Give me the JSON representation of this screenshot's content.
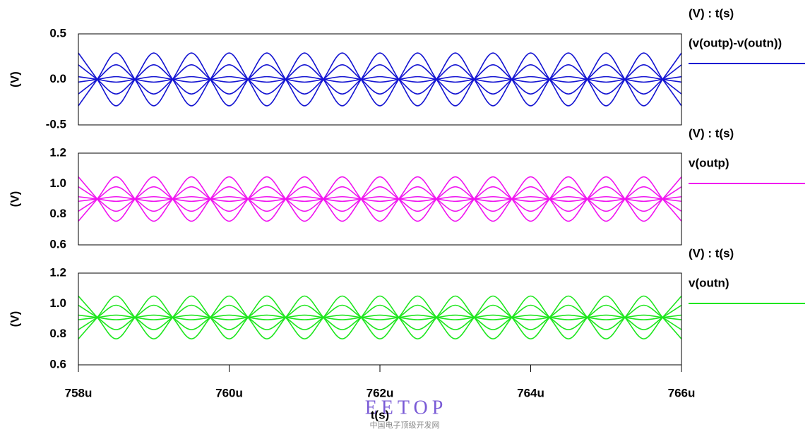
{
  "chart_data": [
    {
      "type": "line",
      "ylabel": "(V)",
      "legend_title": "(V) : t(s)",
      "xlim": [
        0.000758,
        0.000766
      ],
      "ylim": [
        -0.5,
        0.5
      ],
      "yticks": [
        0.5,
        {
          "value": 0,
          "label": "0.0"
        },
        -0.5
      ],
      "x": [
        0.000758,
        0.00075825,
        0.0007585,
        0.00075875,
        0.000759,
        0.00075925,
        0.0007595,
        0.00075975,
        0.00076,
        0.00076025,
        0.0007605,
        0.00076075,
        0.000761,
        0.00076125,
        0.0007615,
        0.00076175,
        0.000762,
        0.00076225,
        0.0007625,
        0.00076275,
        0.000763,
        0.00076325,
        0.0007635,
        0.00076375,
        0.000764,
        0.00076425,
        0.0007645,
        0.00076475,
        0.000765,
        0.00076525,
        0.0007655,
        0.00076575,
        0.000766
      ],
      "series": [
        {
          "name": "(v(outp)-v(outn))",
          "color": "#1414d2",
          "traces": [
            [
              0.29,
              0,
              -0.29,
              0,
              0.29,
              0,
              -0.29,
              0,
              0.29,
              0,
              -0.29,
              0,
              0.29,
              0,
              -0.29,
              0,
              0.29,
              0,
              -0.29,
              0,
              0.29,
              0,
              -0.29,
              0,
              0.29,
              0,
              -0.29,
              0,
              0.29,
              0,
              -0.29,
              0,
              0.29
            ],
            [
              -0.29,
              0,
              0.29,
              0,
              -0.29,
              0,
              0.29,
              0,
              -0.29,
              0,
              0.29,
              0,
              -0.29,
              0,
              0.29,
              0,
              -0.29,
              0,
              0.29,
              0,
              -0.29,
              0,
              0.29,
              0,
              -0.29,
              0,
              0.29,
              0,
              -0.29,
              0,
              0.29,
              0,
              -0.29
            ],
            [
              0.16,
              0,
              -0.16,
              0,
              0.16,
              0,
              -0.16,
              0,
              0.16,
              0,
              -0.16,
              0,
              0.16,
              0,
              -0.16,
              0,
              0.16,
              0,
              -0.16,
              0,
              0.16,
              0,
              -0.16,
              0,
              0.16,
              0,
              -0.16,
              0,
              0.16,
              0,
              -0.16,
              0,
              0.16
            ],
            [
              -0.16,
              0,
              0.16,
              0,
              -0.16,
              0,
              0.16,
              0,
              -0.16,
              0,
              0.16,
              0,
              -0.16,
              0,
              0.16,
              0,
              -0.16,
              0,
              0.16,
              0,
              -0.16,
              0,
              0.16,
              0,
              -0.16,
              0,
              0.16,
              0,
              -0.16,
              0,
              0.16,
              0,
              -0.16
            ],
            [
              0.03,
              0,
              -0.03,
              0,
              0.03,
              0,
              -0.03,
              0,
              0.03,
              0,
              -0.03,
              0,
              0.03,
              0,
              -0.03,
              0,
              0.03,
              0,
              -0.03,
              0,
              0.03,
              0,
              -0.03,
              0,
              0.03,
              0,
              -0.03,
              0,
              0.03,
              0,
              -0.03,
              0,
              0.03
            ],
            [
              -0.03,
              0,
              0.03,
              0,
              -0.03,
              0,
              0.03,
              0,
              -0.03,
              0,
              0.03,
              0,
              -0.03,
              0,
              0.03,
              0,
              -0.03,
              0,
              0.03,
              0,
              -0.03,
              0,
              0.03,
              0,
              -0.03,
              0,
              0.03,
              0,
              -0.03,
              0,
              0.03,
              0,
              -0.03
            ]
          ]
        }
      ]
    },
    {
      "type": "line",
      "ylabel": "(V)",
      "legend_title": "(V) : t(s)",
      "xlim": [
        0.000758,
        0.000766
      ],
      "ylim": [
        0.6,
        1.2
      ],
      "yticks": [
        1.2,
        {
          "value": 1,
          "label": "1.0"
        },
        0.8,
        0.6
      ],
      "x": [
        0.000758,
        0.00075825,
        0.0007585,
        0.00075875,
        0.000759,
        0.00075925,
        0.0007595,
        0.00075975,
        0.00076,
        0.00076025,
        0.0007605,
        0.00076075,
        0.000761,
        0.00076125,
        0.0007615,
        0.00076175,
        0.000762,
        0.00076225,
        0.0007625,
        0.00076275,
        0.000763,
        0.00076325,
        0.0007635,
        0.00076375,
        0.000764,
        0.00076425,
        0.0007645,
        0.00076475,
        0.000765,
        0.00076525,
        0.0007655,
        0.00076575,
        0.000766
      ],
      "series": [
        {
          "name": "v(outp)",
          "color": "#f014f0",
          "traces": [
            [
              1.045,
              0.9,
              0.755,
              0.9,
              1.045,
              0.9,
              0.755,
              0.9,
              1.045,
              0.9,
              0.755,
              0.9,
              1.045,
              0.9,
              0.755,
              0.9,
              1.045,
              0.9,
              0.755,
              0.9,
              1.045,
              0.9,
              0.755,
              0.9,
              1.045,
              0.9,
              0.755,
              0.9,
              1.045,
              0.9,
              0.755,
              0.9,
              1.045
            ],
            [
              0.755,
              0.9,
              1.045,
              0.9,
              0.755,
              0.9,
              1.045,
              0.9,
              0.755,
              0.9,
              1.045,
              0.9,
              0.755,
              0.9,
              1.045,
              0.9,
              0.755,
              0.9,
              1.045,
              0.9,
              0.755,
              0.9,
              1.045,
              0.9,
              0.755,
              0.9,
              1.045,
              0.9,
              0.755,
              0.9,
              1.045,
              0.9,
              0.755
            ],
            [
              0.98,
              0.9,
              0.82,
              0.9,
              0.98,
              0.9,
              0.82,
              0.9,
              0.98,
              0.9,
              0.82,
              0.9,
              0.98,
              0.9,
              0.82,
              0.9,
              0.98,
              0.9,
              0.82,
              0.9,
              0.98,
              0.9,
              0.82,
              0.9,
              0.98,
              0.9,
              0.82,
              0.9,
              0.98,
              0.9,
              0.82,
              0.9,
              0.98
            ],
            [
              0.82,
              0.9,
              0.98,
              0.9,
              0.82,
              0.9,
              0.98,
              0.9,
              0.82,
              0.9,
              0.98,
              0.9,
              0.82,
              0.9,
              0.98,
              0.9,
              0.82,
              0.9,
              0.98,
              0.9,
              0.82,
              0.9,
              0.98,
              0.9,
              0.82,
              0.9,
              0.98,
              0.9,
              0.82,
              0.9,
              0.98,
              0.9,
              0.82
            ],
            [
              0.915,
              0.9,
              0.885,
              0.9,
              0.915,
              0.9,
              0.885,
              0.9,
              0.915,
              0.9,
              0.885,
              0.9,
              0.915,
              0.9,
              0.885,
              0.9,
              0.915,
              0.9,
              0.885,
              0.9,
              0.915,
              0.9,
              0.885,
              0.9,
              0.915,
              0.9,
              0.885,
              0.9,
              0.915,
              0.9,
              0.885,
              0.9,
              0.915
            ],
            [
              0.885,
              0.9,
              0.915,
              0.9,
              0.885,
              0.9,
              0.915,
              0.9,
              0.885,
              0.9,
              0.915,
              0.9,
              0.885,
              0.9,
              0.915,
              0.9,
              0.885,
              0.9,
              0.915,
              0.9,
              0.885,
              0.9,
              0.915,
              0.9,
              0.885,
              0.9,
              0.915,
              0.9,
              0.885,
              0.9,
              0.915,
              0.9,
              0.885
            ]
          ]
        }
      ]
    },
    {
      "type": "line",
      "ylabel": "(V)",
      "legend_title": "(V) : t(s)",
      "xlabel": "t(s)",
      "xlim": [
        0.000758,
        0.000766
      ],
      "ylim": [
        0.6,
        1.2
      ],
      "yticks": [
        1.2,
        {
          "value": 1,
          "label": "1.0"
        },
        0.8,
        0.6
      ],
      "xticks": [
        {
          "value": 0.000758,
          "label": "758u"
        },
        {
          "value": 0.00076,
          "label": "760u"
        },
        {
          "value": 0.000762,
          "label": "762u"
        },
        {
          "value": 0.000764,
          "label": "764u"
        },
        {
          "value": 0.000766,
          "label": "766u"
        }
      ],
      "x": [
        0.000758,
        0.00075825,
        0.0007585,
        0.00075875,
        0.000759,
        0.00075925,
        0.0007595,
        0.00075975,
        0.00076,
        0.00076025,
        0.0007605,
        0.00076075,
        0.000761,
        0.00076125,
        0.0007615,
        0.00076175,
        0.000762,
        0.00076225,
        0.0007625,
        0.00076275,
        0.000763,
        0.00076325,
        0.0007635,
        0.00076375,
        0.000764,
        0.00076425,
        0.0007645,
        0.00076475,
        0.000765,
        0.00076525,
        0.0007655,
        0.00076575,
        0.000766
      ],
      "series": [
        {
          "name": "v(outn)",
          "color": "#1ee61e",
          "traces": [
            [
              1.05,
              0.91,
              0.77,
              0.91,
              1.05,
              0.91,
              0.77,
              0.91,
              1.05,
              0.91,
              0.77,
              0.91,
              1.05,
              0.91,
              0.77,
              0.91,
              1.05,
              0.91,
              0.77,
              0.91,
              1.05,
              0.91,
              0.77,
              0.91,
              1.05,
              0.91,
              0.77,
              0.91,
              1.05,
              0.91,
              0.77,
              0.91,
              1.05
            ],
            [
              0.77,
              0.91,
              1.05,
              0.91,
              0.77,
              0.91,
              1.05,
              0.91,
              0.77,
              0.91,
              1.05,
              0.91,
              0.77,
              0.91,
              1.05,
              0.91,
              0.77,
              0.91,
              1.05,
              0.91,
              0.77,
              0.91,
              1.05,
              0.91,
              0.77,
              0.91,
              1.05,
              0.91,
              0.77,
              0.91,
              1.05,
              0.91,
              0.77
            ],
            [
              0.99,
              0.91,
              0.83,
              0.91,
              0.99,
              0.91,
              0.83,
              0.91,
              0.99,
              0.91,
              0.83,
              0.91,
              0.99,
              0.91,
              0.83,
              0.91,
              0.99,
              0.91,
              0.83,
              0.91,
              0.99,
              0.91,
              0.83,
              0.91,
              0.99,
              0.91,
              0.83,
              0.91,
              0.99,
              0.91,
              0.83,
              0.91,
              0.99
            ],
            [
              0.83,
              0.91,
              0.99,
              0.91,
              0.83,
              0.91,
              0.99,
              0.91,
              0.83,
              0.91,
              0.99,
              0.91,
              0.83,
              0.91,
              0.99,
              0.91,
              0.83,
              0.91,
              0.99,
              0.91,
              0.83,
              0.91,
              0.99,
              0.91,
              0.83,
              0.91,
              0.99,
              0.91,
              0.83,
              0.91,
              0.99,
              0.91,
              0.83
            ],
            [
              0.925,
              0.91,
              0.895,
              0.91,
              0.925,
              0.91,
              0.895,
              0.91,
              0.925,
              0.91,
              0.895,
              0.91,
              0.925,
              0.91,
              0.895,
              0.91,
              0.925,
              0.91,
              0.895,
              0.91,
              0.925,
              0.91,
              0.895,
              0.91,
              0.925,
              0.91,
              0.895,
              0.91,
              0.925,
              0.91,
              0.895,
              0.91,
              0.925
            ],
            [
              0.895,
              0.91,
              0.925,
              0.91,
              0.895,
              0.91,
              0.925,
              0.91,
              0.895,
              0.91,
              0.925,
              0.91,
              0.895,
              0.91,
              0.925,
              0.91,
              0.895,
              0.91,
              0.925,
              0.91,
              0.895,
              0.91,
              0.925,
              0.91,
              0.895,
              0.91,
              0.925,
              0.91,
              0.895,
              0.91,
              0.925,
              0.91,
              0.895
            ]
          ]
        }
      ]
    }
  ],
  "watermark": {
    "title": "EETOP",
    "subtitle": "中国电子顶级开发网"
  }
}
